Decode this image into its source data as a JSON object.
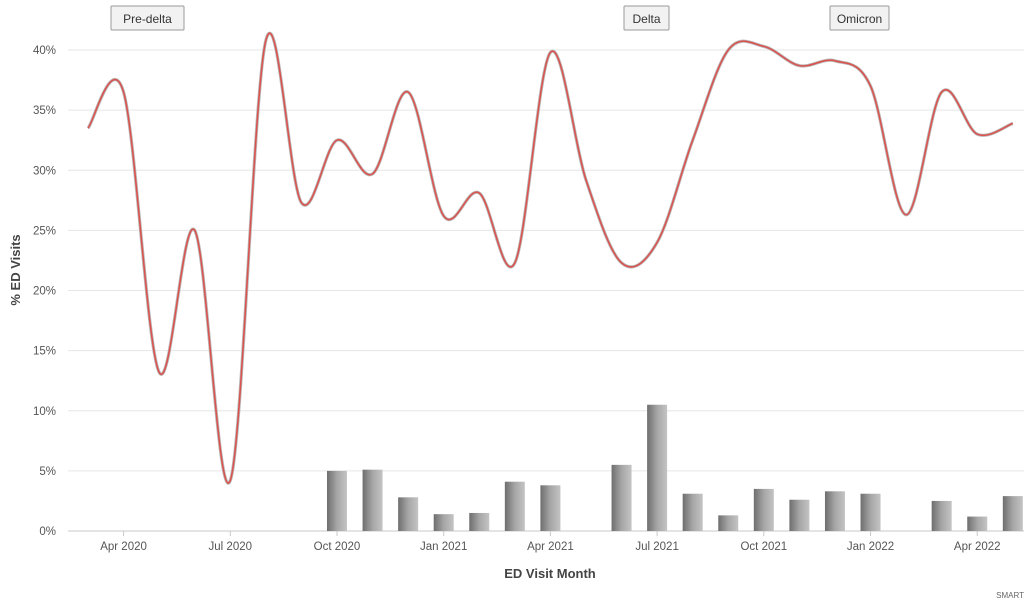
{
  "chart_data": {
    "type": "line+bar",
    "xlabel": "ED Visit Month",
    "ylabel": "% ED Visits",
    "ylim": [
      0,
      40
    ],
    "y_ticks": [
      "0%",
      "5%",
      "10%",
      "15%",
      "20%",
      "25%",
      "30%",
      "35%",
      "40%"
    ],
    "x_ticks": [
      "Apr 2020",
      "Jul 2020",
      "Oct 2020",
      "Jan 2021",
      "Apr 2021",
      "Jul 2021",
      "Oct 2021",
      "Jan 2022",
      "Apr 2022"
    ],
    "months": [
      "2020-03",
      "2020-04",
      "2020-05",
      "2020-06",
      "2020-07",
      "2020-08",
      "2020-09",
      "2020-10",
      "2020-11",
      "2020-12",
      "2021-01",
      "2021-02",
      "2021-03",
      "2021-04",
      "2021-05",
      "2021-06",
      "2021-07",
      "2021-08",
      "2021-09",
      "2021-10",
      "2021-11",
      "2021-12",
      "2022-01",
      "2022-02",
      "2022-03",
      "2022-04",
      "2022-05"
    ],
    "line_series": {
      "color": "#d9534f",
      "values": [
        33.5,
        36.5,
        13.2,
        25.0,
        4.2,
        40.8,
        27.3,
        32.5,
        29.7,
        36.5,
        26.2,
        28.1,
        22.3,
        39.8,
        29.2,
        22.3,
        24.0,
        32.5,
        40.0,
        40.3,
        38.7,
        39.1,
        37.0,
        26.3,
        36.5,
        33.0,
        33.9
      ]
    },
    "bar_series": {
      "color": "#8c8c8c",
      "values": [
        null,
        null,
        null,
        null,
        null,
        null,
        null,
        5.0,
        5.1,
        2.8,
        1.4,
        1.5,
        4.1,
        3.8,
        null,
        5.5,
        10.5,
        3.1,
        1.3,
        3.5,
        2.6,
        3.3,
        3.1,
        null,
        2.5,
        1.2,
        2.9
      ]
    },
    "era_labels": [
      {
        "label": "Pre-delta",
        "month": "2020-03"
      },
      {
        "label": "Delta",
        "month": "2021-06"
      },
      {
        "label": "Omicron",
        "month": "2021-11"
      }
    ],
    "grid": true,
    "credit": "SMART"
  }
}
